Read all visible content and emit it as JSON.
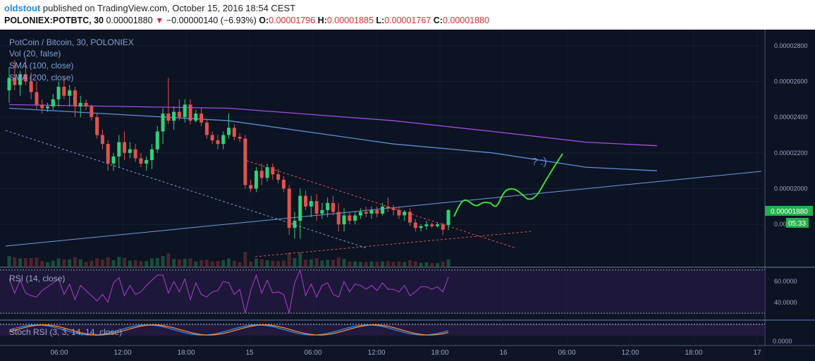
{
  "header": {
    "author": "oldstout",
    "published": "published on TradingView.com, October 15, 2016 18:54 CEST",
    "symbol": "POLONIEX:POTBTC, 30",
    "last": "0.00001880",
    "arrow": "▼",
    "change": "−0.00000140 (−6.93%)",
    "o_label": "O:",
    "o": "0.00001796",
    "h_label": "H:",
    "h": "0.00001885",
    "l_label": "L:",
    "l": "0.00001767",
    "c_label": "C:",
    "c": "0.00001880"
  },
  "legend": {
    "title": "PotCoin / Bitcoin, 30, POLONIEX",
    "vol": "Vol (20, false)",
    "sma100": "SMA (100, close)",
    "sma200": "SMA (200, close)",
    "rsi": "RSI (14, close)",
    "stoch": "Stoch RSI (3, 3, 14, 14, close)"
  },
  "annotation": "? :)",
  "price_badge": "0.00001880",
  "countdown": "05:33",
  "colors": {
    "up": "#33d17a",
    "down": "#e0534f",
    "sma100": "#5b8fd8",
    "sma200": "#a64be8",
    "trend_red": "#e0534f",
    "trend_blue": "#6f9be8",
    "green_path": "#39e03a"
  },
  "chart_data": [
    {
      "type": "candlestick",
      "title": "PotCoin / Bitcoin, 30, POLONIEX",
      "y_tick_labels": [
        "0.00002800",
        "0.00002600",
        "0.00002400",
        "0.00002200",
        "0.00002000",
        "0.00001880",
        "0.00001800"
      ],
      "y_ticks": [
        2.8e-05,
        2.6e-05,
        2.4e-05,
        2.2e-05,
        2e-05,
        1.8e-05
      ],
      "ylim": [
        1.56e-05,
        2.89e-05
      ],
      "x_tick_labels": [
        "06:00",
        "12:00",
        "18:00",
        "15",
        "06:00",
        "12:00",
        "18:00",
        "16",
        "06:00",
        "12:00",
        "18:00",
        "17"
      ],
      "last_price": 1.88e-05,
      "candles": [
        {
          "o": 2.55,
          "h": 2.68,
          "l": 2.48,
          "c": 2.62
        },
        {
          "o": 2.62,
          "h": 2.72,
          "l": 2.55,
          "c": 2.58
        },
        {
          "o": 2.58,
          "h": 2.66,
          "l": 2.52,
          "c": 2.64
        },
        {
          "o": 2.64,
          "h": 2.73,
          "l": 2.58,
          "c": 2.6
        },
        {
          "o": 2.6,
          "h": 2.65,
          "l": 2.5,
          "c": 2.54
        },
        {
          "o": 2.54,
          "h": 2.6,
          "l": 2.44,
          "c": 2.47
        },
        {
          "o": 2.47,
          "h": 2.5,
          "l": 2.42,
          "c": 2.45
        },
        {
          "o": 2.45,
          "h": 2.48,
          "l": 2.43,
          "c": 2.46
        },
        {
          "o": 2.46,
          "h": 2.53,
          "l": 2.44,
          "c": 2.5
        },
        {
          "o": 2.5,
          "h": 2.6,
          "l": 2.46,
          "c": 2.57
        },
        {
          "o": 2.57,
          "h": 2.62,
          "l": 2.5,
          "c": 2.52
        },
        {
          "o": 2.52,
          "h": 2.58,
          "l": 2.46,
          "c": 2.55
        },
        {
          "o": 2.55,
          "h": 2.57,
          "l": 2.4,
          "c": 2.46
        },
        {
          "o": 2.46,
          "h": 2.52,
          "l": 2.4,
          "c": 2.48
        },
        {
          "o": 2.48,
          "h": 2.5,
          "l": 2.44,
          "c": 2.46
        },
        {
          "o": 2.46,
          "h": 2.47,
          "l": 2.38,
          "c": 2.4
        },
        {
          "o": 2.4,
          "h": 2.42,
          "l": 2.28,
          "c": 2.3
        },
        {
          "o": 2.3,
          "h": 2.33,
          "l": 2.22,
          "c": 2.25
        },
        {
          "o": 2.25,
          "h": 2.27,
          "l": 2.1,
          "c": 2.14
        },
        {
          "o": 2.14,
          "h": 2.2,
          "l": 2.1,
          "c": 2.18
        },
        {
          "o": 2.18,
          "h": 2.3,
          "l": 2.12,
          "c": 2.26
        },
        {
          "o": 2.26,
          "h": 2.32,
          "l": 2.16,
          "c": 2.2
        },
        {
          "o": 2.2,
          "h": 2.26,
          "l": 2.17,
          "c": 2.22
        },
        {
          "o": 2.22,
          "h": 2.25,
          "l": 2.15,
          "c": 2.17
        },
        {
          "o": 2.17,
          "h": 2.2,
          "l": 2.12,
          "c": 2.14
        },
        {
          "o": 2.14,
          "h": 2.18,
          "l": 2.1,
          "c": 2.16
        },
        {
          "o": 2.16,
          "h": 2.25,
          "l": 2.11,
          "c": 2.22
        },
        {
          "o": 2.22,
          "h": 2.35,
          "l": 2.2,
          "c": 2.32
        },
        {
          "o": 2.32,
          "h": 2.45,
          "l": 2.25,
          "c": 2.42
        },
        {
          "o": 2.42,
          "h": 2.62,
          "l": 2.36,
          "c": 2.38
        },
        {
          "o": 2.38,
          "h": 2.46,
          "l": 2.33,
          "c": 2.43
        },
        {
          "o": 2.43,
          "h": 2.5,
          "l": 2.38,
          "c": 2.4
        },
        {
          "o": 2.4,
          "h": 2.5,
          "l": 2.37,
          "c": 2.47
        },
        {
          "o": 2.47,
          "h": 2.5,
          "l": 2.36,
          "c": 2.38
        },
        {
          "o": 2.38,
          "h": 2.44,
          "l": 2.37,
          "c": 2.42
        },
        {
          "o": 2.42,
          "h": 2.45,
          "l": 2.35,
          "c": 2.37
        },
        {
          "o": 2.37,
          "h": 2.39,
          "l": 2.28,
          "c": 2.3
        },
        {
          "o": 2.3,
          "h": 2.32,
          "l": 2.25,
          "c": 2.27
        },
        {
          "o": 2.27,
          "h": 2.3,
          "l": 2.22,
          "c": 2.25
        },
        {
          "o": 2.25,
          "h": 2.32,
          "l": 2.22,
          "c": 2.3
        },
        {
          "o": 2.3,
          "h": 2.42,
          "l": 2.28,
          "c": 2.34
        },
        {
          "o": 2.34,
          "h": 2.36,
          "l": 2.27,
          "c": 2.29
        },
        {
          "o": 2.29,
          "h": 2.31,
          "l": 2.26,
          "c": 2.28
        },
        {
          "o": 2.28,
          "h": 2.3,
          "l": 2.0,
          "c": 2.02
        },
        {
          "o": 2.02,
          "h": 2.05,
          "l": 1.98,
          "c": 2.0
        },
        {
          "o": 2.0,
          "h": 2.12,
          "l": 1.98,
          "c": 2.1
        },
        {
          "o": 2.1,
          "h": 2.14,
          "l": 2.02,
          "c": 2.06
        },
        {
          "o": 2.06,
          "h": 2.14,
          "l": 2.04,
          "c": 2.12
        },
        {
          "o": 2.12,
          "h": 2.14,
          "l": 2.05,
          "c": 2.08
        },
        {
          "o": 2.08,
          "h": 2.11,
          "l": 2.03,
          "c": 2.05
        },
        {
          "o": 2.05,
          "h": 2.07,
          "l": 1.98,
          "c": 2.0
        },
        {
          "o": 2.0,
          "h": 2.02,
          "l": 1.74,
          "c": 1.78
        },
        {
          "o": 1.78,
          "h": 1.87,
          "l": 1.72,
          "c": 1.82
        },
        {
          "o": 1.82,
          "h": 2.0,
          "l": 1.72,
          "c": 1.96
        },
        {
          "o": 1.96,
          "h": 1.99,
          "l": 1.88,
          "c": 1.9
        },
        {
          "o": 1.9,
          "h": 1.96,
          "l": 1.84,
          "c": 1.93
        },
        {
          "o": 1.93,
          "h": 1.97,
          "l": 1.82,
          "c": 1.86
        },
        {
          "o": 1.86,
          "h": 1.92,
          "l": 1.83,
          "c": 1.88
        },
        {
          "o": 1.88,
          "h": 1.95,
          "l": 1.84,
          "c": 1.92
        },
        {
          "o": 1.92,
          "h": 1.96,
          "l": 1.85,
          "c": 1.87
        },
        {
          "o": 1.87,
          "h": 1.92,
          "l": 1.76,
          "c": 1.8
        },
        {
          "o": 1.8,
          "h": 1.89,
          "l": 1.76,
          "c": 1.85
        },
        {
          "o": 1.85,
          "h": 1.87,
          "l": 1.8,
          "c": 1.82
        },
        {
          "o": 1.82,
          "h": 1.87,
          "l": 1.8,
          "c": 1.85
        },
        {
          "o": 1.85,
          "h": 1.89,
          "l": 1.83,
          "c": 1.87
        },
        {
          "o": 1.87,
          "h": 1.9,
          "l": 1.84,
          "c": 1.86
        },
        {
          "o": 1.86,
          "h": 1.9,
          "l": 1.83,
          "c": 1.88
        },
        {
          "o": 1.88,
          "h": 1.9,
          "l": 1.84,
          "c": 1.86
        },
        {
          "o": 1.86,
          "h": 1.92,
          "l": 1.85,
          "c": 1.9
        },
        {
          "o": 1.9,
          "h": 1.95,
          "l": 1.87,
          "c": 1.89
        },
        {
          "o": 1.89,
          "h": 1.91,
          "l": 1.85,
          "c": 1.88
        },
        {
          "o": 1.88,
          "h": 1.9,
          "l": 1.83,
          "c": 1.85
        },
        {
          "o": 1.85,
          "h": 1.88,
          "l": 1.82,
          "c": 1.87
        },
        {
          "o": 1.87,
          "h": 1.89,
          "l": 1.79,
          "c": 1.81
        },
        {
          "o": 1.81,
          "h": 1.83,
          "l": 1.76,
          "c": 1.78
        },
        {
          "o": 1.78,
          "h": 1.8,
          "l": 1.76,
          "c": 1.79
        },
        {
          "o": 1.79,
          "h": 1.82,
          "l": 1.77,
          "c": 1.8
        },
        {
          "o": 1.8,
          "h": 1.81,
          "l": 1.78,
          "c": 1.79
        },
        {
          "o": 1.79,
          "h": 1.81,
          "l": 1.78,
          "c": 1.8
        },
        {
          "o": 1.8,
          "h": 1.81,
          "l": 1.74,
          "c": 1.77
        },
        {
          "o": 1.796,
          "h": 1.885,
          "l": 1.767,
          "c": 1.88
        }
      ],
      "candle_unit": "1e-5 BTC",
      "sma100": [
        [
          0,
          2.45
        ],
        [
          40,
          2.38
        ],
        [
          70,
          2.25
        ],
        [
          88,
          2.2
        ],
        [
          105,
          2.12
        ],
        [
          118,
          2.1
        ]
      ],
      "sma200": [
        [
          0,
          2.47
        ],
        [
          40,
          2.45
        ],
        [
          70,
          2.38
        ],
        [
          88,
          2.32
        ],
        [
          105,
          2.26
        ],
        [
          118,
          2.24
        ]
      ]
    },
    {
      "type": "line",
      "title": "RSI (14, close)",
      "y_tick_labels": [
        "60.0000",
        "40.0000"
      ],
      "ylim": [
        20,
        80
      ]
    },
    {
      "type": "line",
      "title": "Stoch RSI (3, 3, 14, 14, close)",
      "y_tick_labels": [
        "0.0000"
      ],
      "ylim": [
        0,
        100
      ]
    }
  ]
}
